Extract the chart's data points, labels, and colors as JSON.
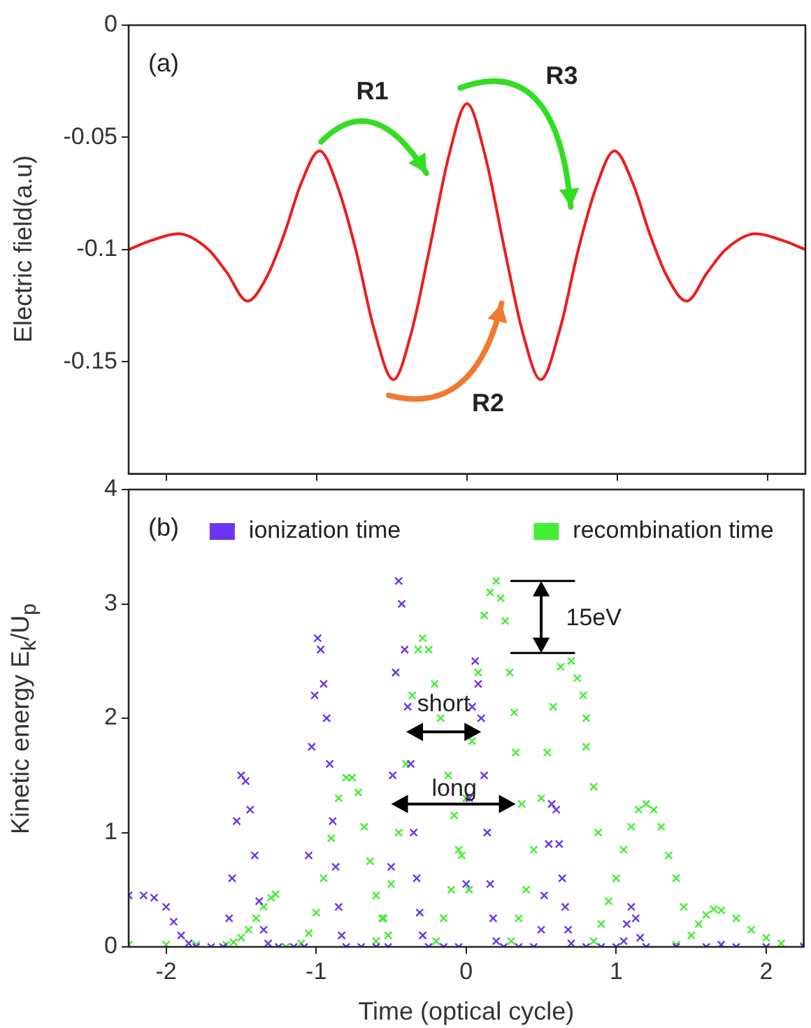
{
  "chart_data": [
    {
      "type": "line",
      "ylabel": "Electric field(a.u)",
      "annotations": [
        "(a)",
        "R1",
        "R2",
        "R3"
      ],
      "x": [
        -2.25,
        -2.1,
        -1.92,
        -1.72,
        -1.6,
        -1.46,
        -1.33,
        -1.22,
        -1.1,
        -0.98,
        -0.86,
        -0.74,
        -0.62,
        -0.49,
        -0.37,
        -0.25,
        -0.12,
        0,
        0.12,
        0.25,
        0.37,
        0.49,
        0.62,
        0.74,
        0.86,
        0.98,
        1.1,
        1.22,
        1.33,
        1.46,
        1.6,
        1.72,
        1.92,
        2.1,
        2.25
      ],
      "series": [
        {
          "color": "#ee1c1c",
          "values": [
            -0.1,
            -0.096,
            -0.093,
            -0.1,
            -0.11,
            -0.123,
            -0.112,
            -0.094,
            -0.07,
            -0.056,
            -0.072,
            -0.1,
            -0.135,
            -0.158,
            -0.137,
            -0.1,
            -0.058,
            -0.035,
            -0.058,
            -0.1,
            -0.137,
            -0.158,
            -0.135,
            -0.1,
            -0.072,
            -0.056,
            -0.07,
            -0.094,
            -0.112,
            -0.123,
            -0.11,
            -0.1,
            -0.093,
            -0.096,
            -0.1
          ]
        }
      ],
      "xlim": [
        -2.25,
        2.25
      ],
      "xticks": [
        -2,
        -1,
        0,
        1,
        2
      ],
      "ylim": [
        -0.2,
        0
      ],
      "yticks": [
        -0.15,
        -0.1,
        -0.05,
        0
      ],
      "tick_labels": "y",
      "grid": false,
      "marker": "none"
    },
    {
      "type": "scatter",
      "xlabel": "Time (optical cycle)",
      "ylabel": "Kinetic energy E$_{k}$/U$_{p}$",
      "annotations": [
        "(b)",
        "short",
        "long",
        "15eV"
      ],
      "series": [
        {
          "name": "ionization time",
          "color": "#6a35ee",
          "x": [
            -2.25,
            -2.15,
            -2.08,
            -2,
            -1.95,
            -1.9,
            -1.85,
            -1.8,
            -1.7,
            -1.62,
            -1.58,
            -1.56,
            -1.53,
            -1.5,
            -1.47,
            -1.44,
            -1.41,
            -1.38,
            -1.35,
            -1.32,
            -1.25,
            -1.15,
            -1.08,
            -1.05,
            -1.03,
            -1.01,
            -0.99,
            -0.97,
            -0.95,
            -0.93,
            -0.91,
            -0.89,
            -0.87,
            -0.85,
            -0.83,
            -0.8,
            -0.7,
            -0.6,
            -0.52,
            -0.5,
            -0.49,
            -0.47,
            -0.45,
            -0.43,
            -0.41,
            -0.39,
            -0.37,
            -0.35,
            -0.33,
            -0.31,
            -0.29,
            -0.25,
            -0.15,
            -0.05,
            0,
            0.02,
            0.04,
            0.06,
            0.08,
            0.1,
            0.12,
            0.14,
            0.16,
            0.18,
            0.2,
            0.25,
            0.35,
            0.45,
            0.5,
            0.52,
            0.55,
            0.57,
            0.6,
            0.62,
            0.64,
            0.66,
            0.68,
            0.7,
            0.8,
            0.9,
            1,
            1.05,
            1.07,
            1.1,
            1.13,
            1.16,
            1.2,
            1.4,
            1.6,
            1.7,
            1.8,
            2,
            2.25
          ],
          "values": [
            0.45,
            0.45,
            0.43,
            0.35,
            0.22,
            0.1,
            0.03,
            0,
            0,
            0,
            0.25,
            0.6,
            1.1,
            1.5,
            1.45,
            1.2,
            0.8,
            0.4,
            0.15,
            0.03,
            0,
            0,
            0,
            0.8,
            1.75,
            2.2,
            2.7,
            2.6,
            2.3,
            2,
            1.6,
            1.1,
            0.7,
            0.35,
            0.1,
            0,
            0,
            0,
            0,
            0.7,
            1.5,
            2.4,
            3.2,
            3,
            2.6,
            2.1,
            1.6,
            1,
            0.6,
            0.3,
            0.1,
            0,
            0,
            0,
            0.55,
            1.3,
            2.1,
            2.5,
            2.3,
            2,
            1.5,
            1,
            0.55,
            0.25,
            0.05,
            0,
            0,
            0,
            0.15,
            0.45,
            0.9,
            1.25,
            1.2,
            0.9,
            0.6,
            0.35,
            0.15,
            0.03,
            0,
            0,
            0,
            0.05,
            0.2,
            0.35,
            0.25,
            0.08,
            0,
            0,
            0,
            0.02,
            0,
            0,
            0
          ]
        },
        {
          "name": "recombination time",
          "color": "#44ee33",
          "x": [
            -2.25,
            -2,
            -1.8,
            -1.6,
            -1.55,
            -1.5,
            -1.45,
            -1.4,
            -1.35,
            -1.3,
            -1.27,
            -1.2,
            -1.1,
            -1.05,
            -1,
            -0.95,
            -0.9,
            -0.85,
            -0.8,
            -0.76,
            -0.72,
            -0.68,
            -0.64,
            -0.6,
            -0.56,
            -0.52,
            -0.6,
            -0.55,
            -0.5,
            -0.45,
            -0.4,
            -0.36,
            -0.32,
            -0.29,
            -0.25,
            -0.21,
            -0.17,
            -0.12,
            -0.08,
            -0.03,
            0.02,
            -0.2,
            -0.15,
            -0.1,
            -0.05,
            0,
            0.04,
            0.08,
            0.12,
            0.16,
            0.2,
            0.23,
            0.26,
            0.29,
            0.32,
            0.33,
            0.37,
            0.3,
            0.35,
            0.4,
            0.45,
            0.5,
            0.54,
            0.58,
            0.63,
            0.7,
            0.74,
            0.78,
            0.8,
            0.8,
            0.85,
            0.88,
            0.85,
            0.9,
            0.95,
            1,
            1.05,
            1.1,
            1.15,
            1.2,
            1.25,
            1.3,
            1.35,
            1.4,
            1.45,
            1.4,
            1.5,
            1.55,
            1.6,
            1.65,
            1.7,
            1.8,
            1.9,
            2,
            2.1,
            2.25
          ],
          "values": [
            0.02,
            0.02,
            0.02,
            0.02,
            0.04,
            0.08,
            0.15,
            0.25,
            0.35,
            0.43,
            0.46,
            0,
            0.03,
            0.12,
            0.3,
            0.6,
            0.95,
            1.3,
            1.48,
            1.48,
            1.35,
            1.05,
            0.75,
            0.45,
            0.25,
            0.1,
            0.05,
            0.25,
            0.55,
            1,
            1.6,
            2.2,
            2.6,
            2.7,
            2.6,
            2.3,
            2,
            1.5,
            1.15,
            0.8,
            0.5,
            0.05,
            0.25,
            0.5,
            0.85,
            1.3,
            1.8,
            2.4,
            2.9,
            3.1,
            3.2,
            3.05,
            2.85,
            2.4,
            2.05,
            1.7,
            1.25,
            0.05,
            0.25,
            0.5,
            0.85,
            1.3,
            1.7,
            2.1,
            2.45,
            2.5,
            2.35,
            2.2,
            2,
            1.75,
            1.4,
            1,
            0.05,
            0.2,
            0.4,
            0.6,
            0.85,
            1.05,
            1.2,
            1.25,
            1.2,
            1.05,
            0.8,
            0.6,
            0.35,
            0.02,
            0.1,
            0.2,
            0.28,
            0.33,
            0.32,
            0.25,
            0.15,
            0.08,
            0.03,
            0.01
          ]
        }
      ],
      "xlim": [
        -2.25,
        2.25
      ],
      "xticks": [
        -2,
        -1,
        0,
        1,
        2
      ],
      "ylim": [
        0,
        4
      ],
      "yticks": [
        0,
        1,
        2,
        3,
        4
      ],
      "grid": false,
      "legend": "top",
      "marker": "cross"
    }
  ]
}
